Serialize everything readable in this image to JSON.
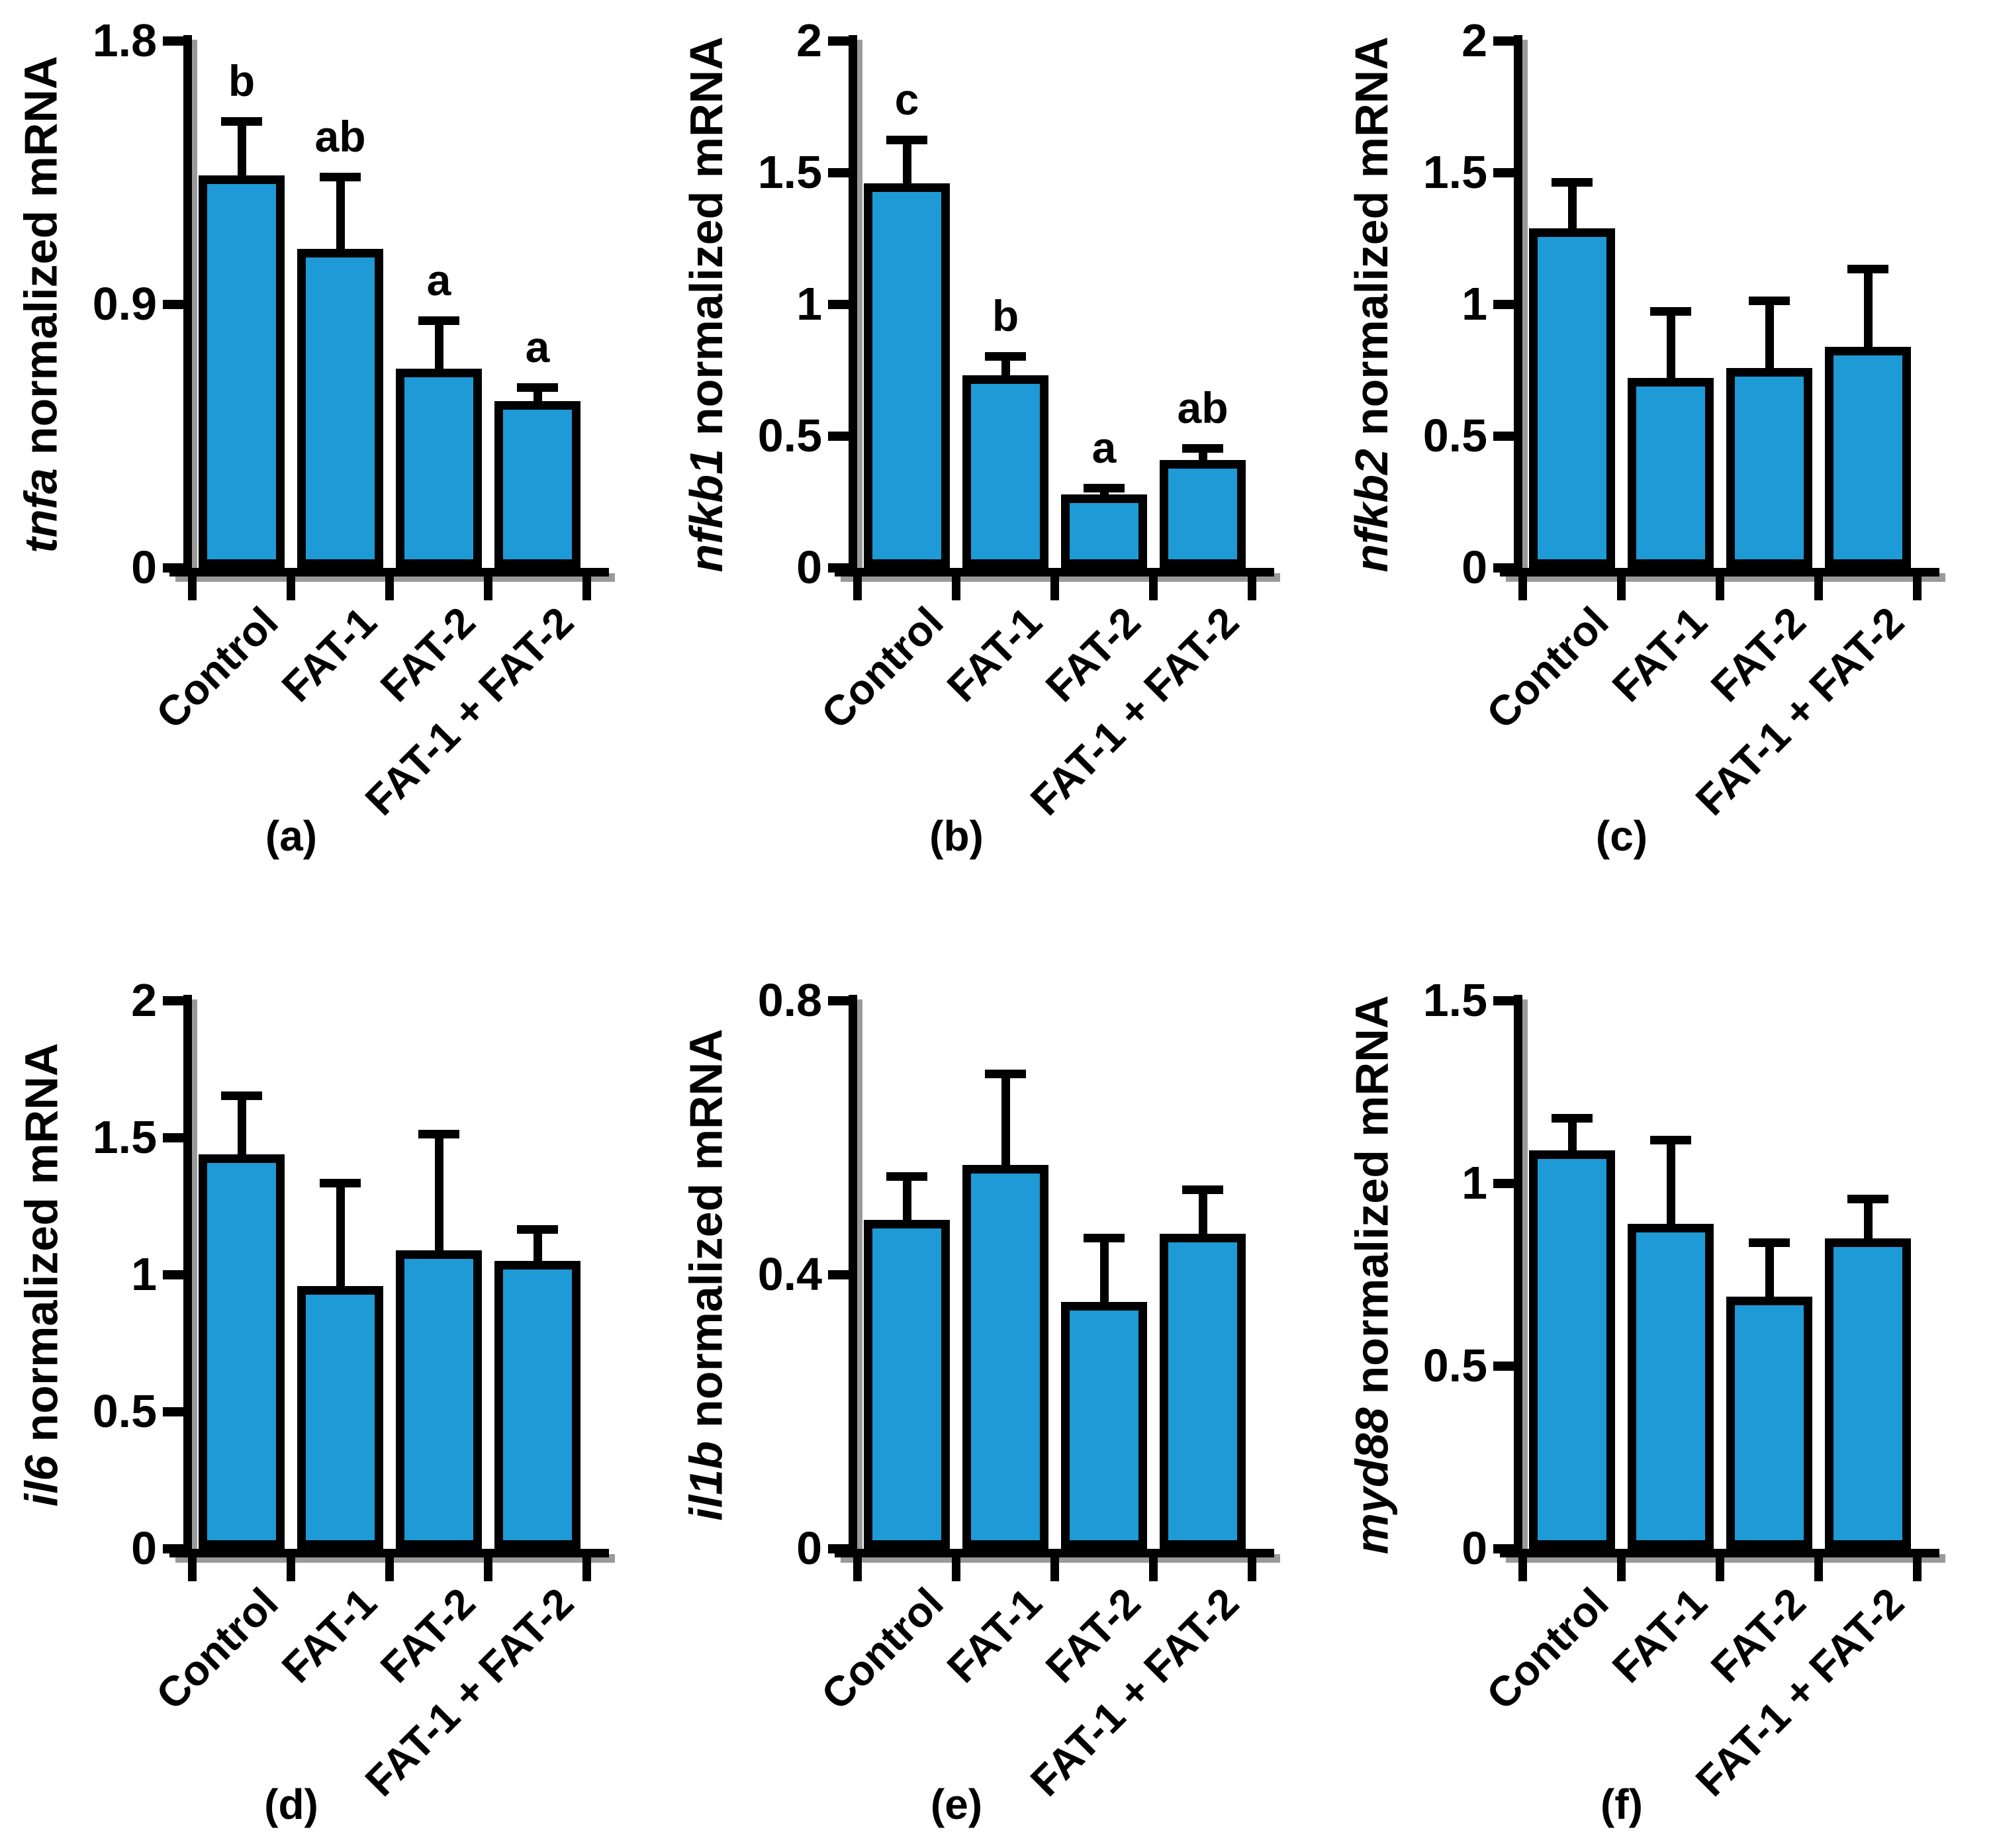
{
  "page": {
    "background": "#FFFFFF"
  },
  "style": {
    "bar_fill": "#1E9AD6",
    "bar_border": "#000000",
    "axis_color": "#000000",
    "shadow_color": "#9A9A9A",
    "text_color": "#000000"
  },
  "categories": [
    "Control",
    "FAT-1",
    "FAT-2",
    "FAT-1 + FAT-2"
  ],
  "chart_data": [
    {
      "type": "bar",
      "panel_label": "(a)",
      "ylabel": {
        "gene": "tnfa",
        "rest": "normalized mRNA"
      },
      "ylim": [
        0,
        1.8
      ],
      "yticks": [
        0,
        0.9,
        1.8
      ],
      "ytick_labels": [
        "0",
        "0.9",
        "1.8"
      ],
      "categories": [
        "Control",
        "FAT-1",
        "FAT-2",
        "FAT-1 + FAT-2"
      ],
      "values": [
        1.34,
        1.09,
        0.68,
        0.57
      ],
      "errors_upper": [
        0.2,
        0.26,
        0.18,
        0.06
      ],
      "sig_letters": [
        "b",
        "ab",
        "a",
        "a"
      ],
      "grid": false,
      "legend": null
    },
    {
      "type": "bar",
      "panel_label": "(b)",
      "ylabel": {
        "gene": "nfkb1",
        "rest": "normalized mRNA"
      },
      "ylim": [
        0,
        2
      ],
      "yticks": [
        0,
        0.5,
        1,
        1.5,
        2
      ],
      "ytick_labels": [
        "0",
        "0.5",
        "1",
        "1.5",
        "2"
      ],
      "categories": [
        "Control",
        "FAT-1",
        "FAT-2",
        "FAT-1 + FAT-2"
      ],
      "values": [
        1.46,
        0.73,
        0.28,
        0.41
      ],
      "errors_upper": [
        0.18,
        0.09,
        0.04,
        0.06
      ],
      "sig_letters": [
        "c",
        "b",
        "a",
        "ab"
      ],
      "grid": false,
      "legend": null
    },
    {
      "type": "bar",
      "panel_label": "(c)",
      "ylabel": {
        "gene": "nfkb2",
        "rest": "normalized mRNA"
      },
      "ylim": [
        0,
        2
      ],
      "yticks": [
        0,
        0.5,
        1,
        1.5,
        2
      ],
      "ytick_labels": [
        "0",
        "0.5",
        "1",
        "1.5",
        "2"
      ],
      "categories": [
        "Control",
        "FAT-1",
        "FAT-2",
        "FAT-1 + FAT-2"
      ],
      "values": [
        1.29,
        0.72,
        0.76,
        0.84
      ],
      "errors_upper": [
        0.19,
        0.27,
        0.27,
        0.31
      ],
      "sig_letters": [
        "",
        "",
        "",
        ""
      ],
      "grid": false,
      "legend": null
    },
    {
      "type": "bar",
      "panel_label": "(d)",
      "ylabel": {
        "gene": "il6",
        "rest": "normalized mRNA"
      },
      "ylim": [
        0,
        2
      ],
      "yticks": [
        0,
        0.5,
        1,
        1.5,
        2
      ],
      "ytick_labels": [
        "0",
        "0.5",
        "1",
        "1.5",
        "2"
      ],
      "categories": [
        "Control",
        "FAT-1",
        "FAT-2",
        "FAT-1 + FAT-2"
      ],
      "values": [
        1.44,
        0.96,
        1.09,
        1.05
      ],
      "errors_upper": [
        0.23,
        0.39,
        0.44,
        0.13
      ],
      "sig_letters": [
        "",
        "",
        "",
        ""
      ],
      "grid": false,
      "legend": null
    },
    {
      "type": "bar",
      "panel_label": "(e)",
      "ylabel": {
        "gene": "il1b",
        "rest": "normalized mRNA"
      },
      "ylim": [
        0,
        0.8
      ],
      "yticks": [
        0,
        0.4,
        0.8
      ],
      "ytick_labels": [
        "0",
        "0.4",
        "0.8"
      ],
      "categories": [
        "Control",
        "FAT-1",
        "FAT-2",
        "FAT-1 + FAT-2"
      ],
      "values": [
        0.48,
        0.56,
        0.36,
        0.46
      ],
      "errors_upper": [
        0.07,
        0.14,
        0.1,
        0.07
      ],
      "sig_letters": [
        "",
        "",
        "",
        ""
      ],
      "grid": false,
      "legend": null
    },
    {
      "type": "bar",
      "panel_label": "(f)",
      "ylabel": {
        "gene": "myd88",
        "rest": "normalized mRNA"
      },
      "ylim": [
        0,
        1.5
      ],
      "yticks": [
        0,
        0.5,
        1,
        1.5
      ],
      "ytick_labels": [
        "0",
        "0.5",
        "1",
        "1.5"
      ],
      "categories": [
        "Control",
        "FAT-1",
        "FAT-2",
        "FAT-1 + FAT-2"
      ],
      "values": [
        1.09,
        0.89,
        0.69,
        0.85
      ],
      "errors_upper": [
        0.1,
        0.24,
        0.16,
        0.12
      ],
      "sig_letters": [
        "",
        "",
        "",
        ""
      ],
      "grid": false,
      "legend": null
    }
  ]
}
